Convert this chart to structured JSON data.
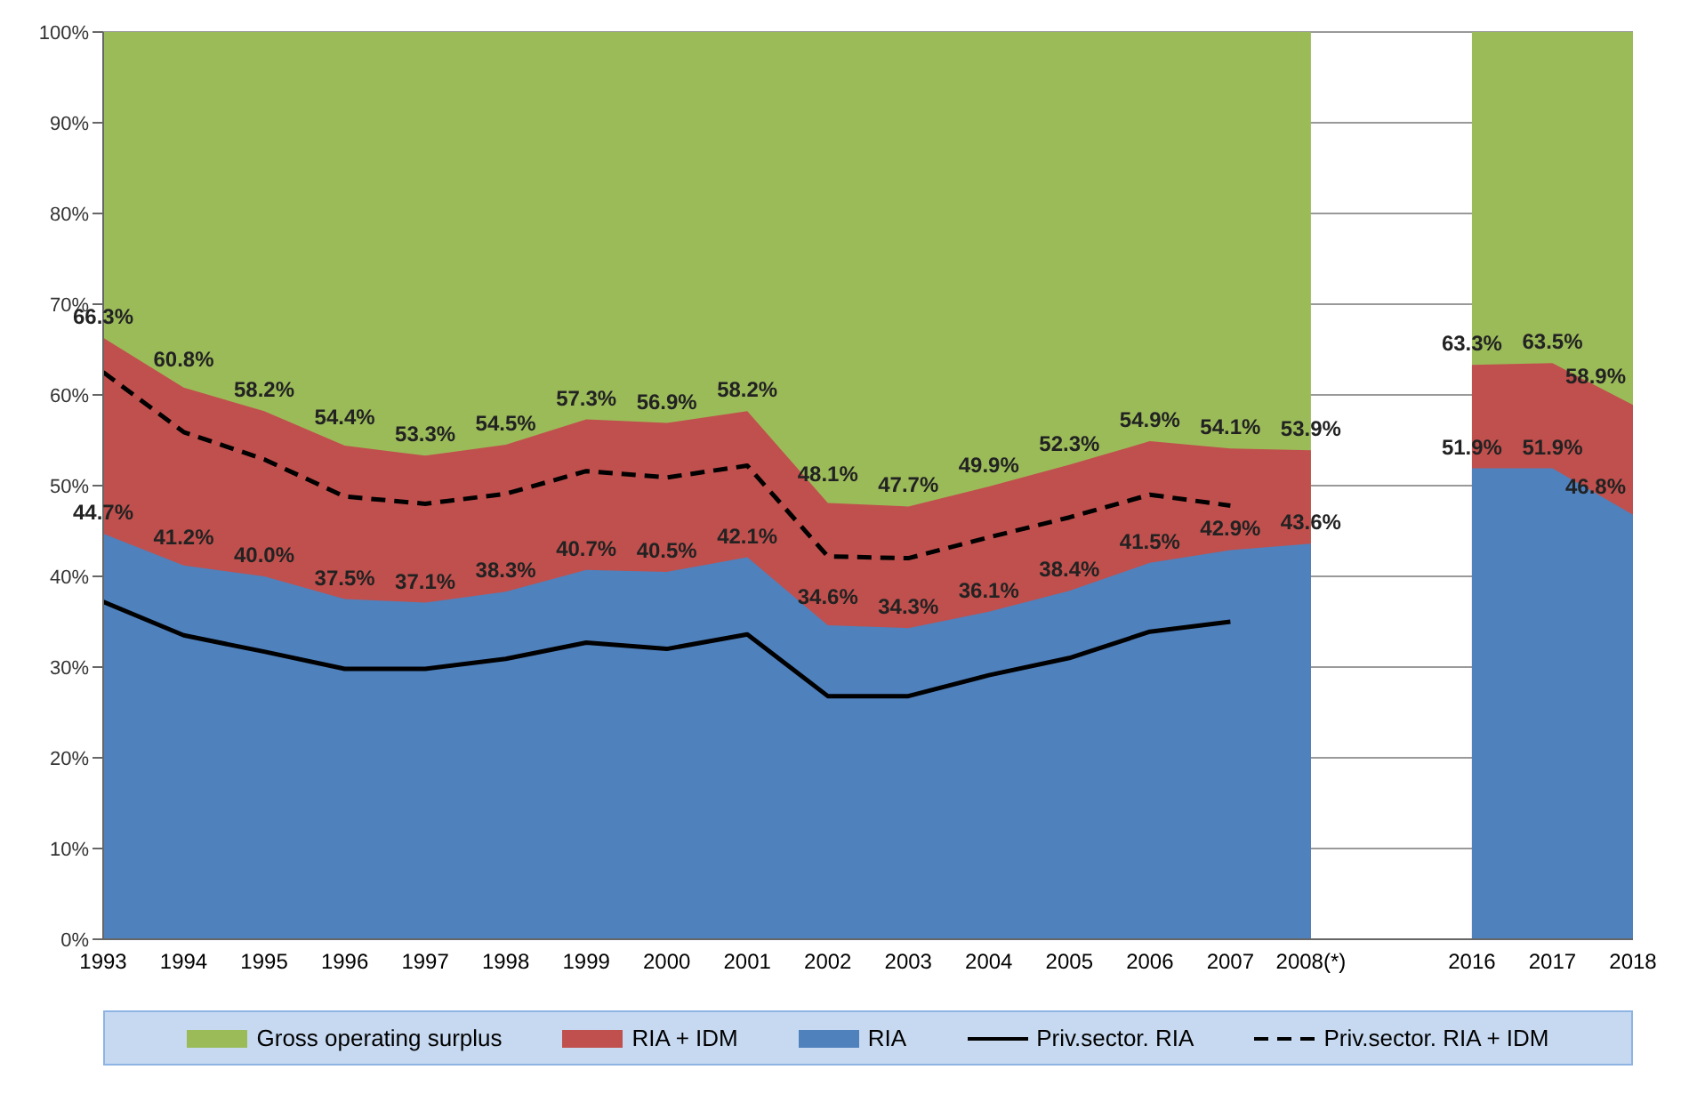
{
  "chart_data": {
    "type": "area",
    "categories": [
      "1993",
      "1994",
      "1995",
      "1996",
      "1997",
      "1998",
      "1999",
      "2000",
      "2001",
      "2002",
      "2003",
      "2004",
      "2005",
      "2006",
      "2007",
      "2008(*)",
      null,
      "2016",
      "2017",
      "2018"
    ],
    "series": [
      {
        "name": "Gross operating surplus",
        "color": "#9bbb59",
        "values": [
          100,
          100,
          100,
          100,
          100,
          100,
          100,
          100,
          100,
          100,
          100,
          100,
          100,
          100,
          100,
          100,
          null,
          100,
          100,
          100
        ]
      },
      {
        "name": "RIA + IDM",
        "color": "#c0504d",
        "values": [
          66.3,
          60.8,
          58.2,
          54.4,
          53.3,
          54.5,
          57.3,
          56.9,
          58.2,
          48.1,
          47.7,
          49.9,
          52.3,
          54.9,
          54.1,
          53.9,
          null,
          63.3,
          63.5,
          58.9
        ],
        "value_labels": [
          "66.3%",
          "60.8%",
          "58.2%",
          "54.4%",
          "53.3%",
          "54.5%",
          "57.3%",
          "56.9%",
          "58.2%",
          "48.1%",
          "47.7%",
          "49.9%",
          "52.3%",
          "54.9%",
          "54.1%",
          "53.9%",
          null,
          "63.3%",
          "63.5%",
          "58.9%"
        ]
      },
      {
        "name": "RIA",
        "color": "#4f81bd",
        "values": [
          44.7,
          41.2,
          40.0,
          37.5,
          37.1,
          38.3,
          40.7,
          40.5,
          42.1,
          34.6,
          34.3,
          36.1,
          38.4,
          41.5,
          42.9,
          43.6,
          null,
          51.9,
          51.9,
          46.8
        ],
        "value_labels": [
          "44.7%",
          "41.2%",
          "40.0%",
          "37.5%",
          "37.1%",
          "38.3%",
          "40.7%",
          "40.5%",
          "42.1%",
          "34.6%",
          "34.3%",
          "36.1%",
          "38.4%",
          "41.5%",
          "42.9%",
          "43.6%",
          null,
          "51.9%",
          "51.9%",
          "46.8%"
        ]
      },
      {
        "name": "Priv.sector. RIA",
        "type": "line",
        "color": "#000000",
        "line_style": "solid",
        "values": [
          37.2,
          33.5,
          31.7,
          29.8,
          29.8,
          30.9,
          32.7,
          32.0,
          33.6,
          26.8,
          26.8,
          29.1,
          31.0,
          33.9,
          35.0,
          null,
          null,
          null,
          null,
          null
        ]
      },
      {
        "name": "Priv.sector. RIA + IDM",
        "type": "line",
        "color": "#000000",
        "line_style": "dashed",
        "values": [
          62.5,
          55.9,
          52.9,
          48.8,
          48.0,
          49.1,
          51.6,
          50.9,
          52.2,
          42.2,
          42.0,
          44.3,
          46.5,
          49.0,
          47.8,
          null,
          null,
          null,
          null,
          null
        ]
      }
    ],
    "ylim": [
      0,
      100
    ],
    "yticks": [
      {
        "value": 0,
        "label": "0%"
      },
      {
        "value": 10,
        "label": "10%"
      },
      {
        "value": 20,
        "label": "20%"
      },
      {
        "value": 30,
        "label": "30%"
      },
      {
        "value": 40,
        "label": "40%"
      },
      {
        "value": 50,
        "label": "50%"
      },
      {
        "value": 60,
        "label": "60%"
      },
      {
        "value": 70,
        "label": "70%"
      },
      {
        "value": 80,
        "label": "80%"
      },
      {
        "value": 90,
        "label": "90%"
      },
      {
        "value": 100,
        "label": "100%"
      }
    ],
    "grid": "y",
    "legend": "bottom",
    "marker": "none"
  }
}
